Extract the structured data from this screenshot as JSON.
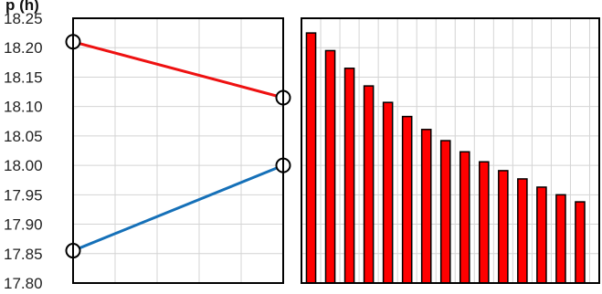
{
  "colors": {
    "red_line": "#ee1111",
    "blue_line": "#1570b8",
    "bar_fill": "#ff0000",
    "bar_stroke": "#000000",
    "grid": "#d4d4d4",
    "frame": "#000000"
  },
  "chart_data": [
    {
      "type": "line",
      "title": "p (h)",
      "ylim": [
        17.8,
        18.25
      ],
      "y_ticks": [
        "18.25",
        "18.20",
        "18.15",
        "18.10",
        "18.05",
        "18.00",
        "17.95",
        "17.90",
        "17.85",
        "17.80"
      ],
      "x": [
        0,
        1
      ],
      "grid": true,
      "series": [
        {
          "color": "#ee1111",
          "values": [
            18.21,
            18.115
          ]
        },
        {
          "color": "#1570b8",
          "values": [
            17.855,
            18.0
          ]
        }
      ]
    },
    {
      "type": "bar",
      "grid": true,
      "ylim": [
        17.8,
        18.25
      ],
      "values": [
        18.225,
        18.195,
        18.165,
        18.135,
        18.107,
        18.083,
        18.061,
        18.042,
        18.023,
        18.006,
        17.991,
        17.977,
        17.963,
        17.95,
        17.938
      ]
    }
  ]
}
